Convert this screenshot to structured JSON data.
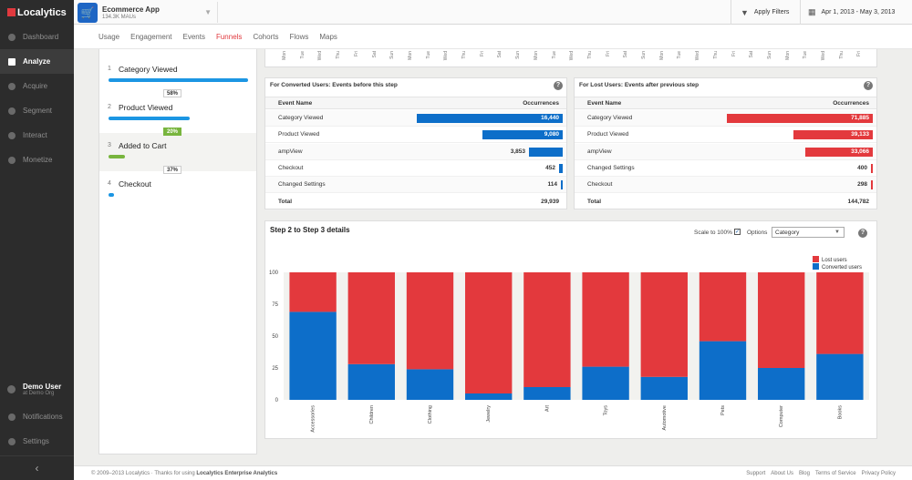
{
  "brand": {
    "name": "Localytics"
  },
  "sidebar": {
    "items": [
      {
        "label": "Dashboard",
        "icon": "dashboard-icon"
      },
      {
        "label": "Analyze",
        "icon": "analyze-icon",
        "active": true
      },
      {
        "label": "Acquire",
        "icon": "acquire-icon"
      },
      {
        "label": "Segment",
        "icon": "segment-icon"
      },
      {
        "label": "Interact",
        "icon": "interact-icon"
      },
      {
        "label": "Monetize",
        "icon": "monetize-icon"
      }
    ],
    "user": {
      "name": "Demo User",
      "org": "at Demo Org"
    },
    "notifications": "Notifications",
    "settings": "Settings",
    "collapse": "‹"
  },
  "topbar": {
    "app_name": "Ecommerce App",
    "app_maus": "134.3K MAUs",
    "apply_filters": "Apply Filters",
    "date_range": "Apr 1, 2013 - May 3, 2013"
  },
  "tabs": [
    {
      "label": "Usage"
    },
    {
      "label": "Engagement"
    },
    {
      "label": "Events"
    },
    {
      "label": "Funnels",
      "active": true
    },
    {
      "label": "Cohorts"
    },
    {
      "label": "Flows"
    },
    {
      "label": "Maps"
    }
  ],
  "days": [
    "Mon",
    "Tue",
    "Wed",
    "Thu",
    "Fri",
    "Sat",
    "Sun",
    "Mon",
    "Tue",
    "Wed",
    "Thu",
    "Fri",
    "Sat",
    "Sun",
    "Mon",
    "Tue",
    "Wed",
    "Thu",
    "Fri",
    "Sat",
    "Sun",
    "Mon",
    "Tue",
    "Wed",
    "Thu",
    "Fri",
    "Sat",
    "Sun",
    "Mon",
    "Tue",
    "Wed",
    "Thu",
    "Fri"
  ],
  "funnel": {
    "steps": [
      {
        "num": "1",
        "label": "Category Viewed",
        "fraction": 1.0,
        "color": "#1c96e3"
      },
      {
        "num": "2",
        "label": "Product Viewed",
        "fraction": 0.58,
        "color": "#1c96e3"
      },
      {
        "num": "3",
        "label": "Added to Cart",
        "fraction": 0.12,
        "color": "#78b53e"
      },
      {
        "num": "4",
        "label": "Checkout",
        "fraction": 0.04,
        "color": "#1c96e3"
      }
    ],
    "conversions": [
      "58%",
      "20%",
      "37%"
    ]
  },
  "converted": {
    "title": "For Converted Users: Events before this step",
    "col_event": "Event Name",
    "col_occ": "Occurrences",
    "rows": [
      {
        "name": "Category Viewed",
        "value": "16,440",
        "n": 16440
      },
      {
        "name": "Product Viewed",
        "value": "9,080",
        "n": 9080
      },
      {
        "name": "ampView",
        "value": "3,853",
        "n": 3853
      },
      {
        "name": "Checkout",
        "value": "452",
        "n": 452
      },
      {
        "name": "Changed Settings",
        "value": "114",
        "n": 114
      }
    ],
    "total_label": "Total",
    "total": "29,939",
    "color": "#0d6ec9"
  },
  "lost": {
    "title": "For Lost Users: Events after previous step",
    "col_event": "Event Name",
    "col_occ": "Occurrences",
    "rows": [
      {
        "name": "Category Viewed",
        "value": "71,885",
        "n": 71885
      },
      {
        "name": "Product Viewed",
        "value": "39,133",
        "n": 39133
      },
      {
        "name": "ampView",
        "value": "33,066",
        "n": 33066
      },
      {
        "name": "Changed Settings",
        "value": "400",
        "n": 400
      },
      {
        "name": "Checkout",
        "value": "298",
        "n": 298
      }
    ],
    "total_label": "Total",
    "total": "144,782",
    "color": "#e3393d"
  },
  "details": {
    "title": "Step 2 to Step 3 details",
    "scale_label": "Scale to 100%",
    "options_label": "Options",
    "selected_option": "Category"
  },
  "chart_data": {
    "type": "bar",
    "stacked": true,
    "categories": [
      "Accessories",
      "Children",
      "Clothing",
      "Jewelry",
      "Art",
      "Toys",
      "Automotive",
      "Pets",
      "Computer",
      "Books"
    ],
    "series": [
      {
        "name": "Converted users",
        "values": [
          69,
          28,
          24,
          5,
          10,
          26,
          18,
          46,
          25,
          36
        ],
        "color": "#0d6ec9"
      },
      {
        "name": "Lost users",
        "values": [
          31,
          72,
          76,
          95,
          90,
          74,
          82,
          54,
          75,
          64
        ],
        "color": "#e3393d"
      }
    ],
    "legend": [
      "Lost users",
      "Converted users"
    ],
    "yticks": [
      0,
      25,
      50,
      75,
      100
    ],
    "ylim": [
      0,
      100
    ],
    "legend_position": "top-right"
  },
  "footer": {
    "copyright": "© 2009–2013 Localytics  ·  Thanks for using",
    "product": "Localytics Enterprise Analytics",
    "links": [
      "Support",
      "About Us",
      "Blog",
      "Terms of Service",
      "Privacy Policy"
    ]
  }
}
